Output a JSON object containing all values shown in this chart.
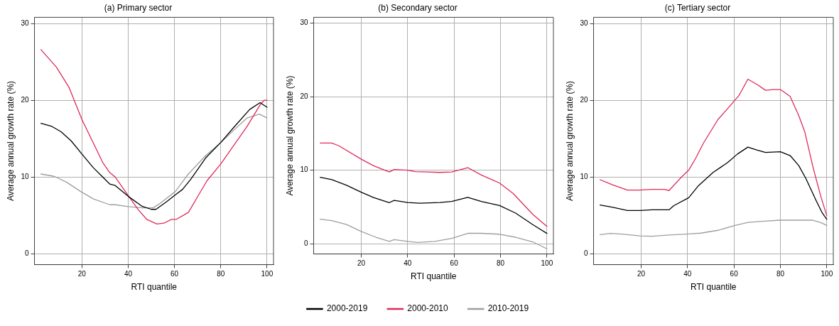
{
  "chart_data": [
    {
      "type": "line",
      "title": "(a) Primary sector",
      "xlabel": "RTI quantile",
      "ylabel": "Average annual growth rate (%)",
      "xlim": [
        -0.5,
        102.8
      ],
      "ylim": [
        -1.4,
        30.8
      ],
      "xticks": [
        20,
        40,
        60,
        80,
        100
      ],
      "yticks": [
        0,
        10,
        20,
        30
      ],
      "grid": true,
      "legend": false,
      "series": [
        {
          "color": "#000000",
          "x": [
            2.3,
            7,
            11,
            15.4,
            20,
            25,
            29,
            32,
            34.4,
            40,
            46,
            50,
            52,
            56.6,
            60,
            63.5,
            67,
            73.5,
            80,
            86,
            92.5,
            97,
            100
          ],
          "values": [
            17.0,
            16.6,
            15.9,
            14.7,
            13.0,
            11.2,
            10.0,
            9.1,
            8.9,
            7.5,
            6.2,
            5.8,
            5.8,
            6.8,
            7.6,
            8.4,
            9.7,
            12.5,
            14.5,
            16.6,
            18.8,
            19.7,
            19.1
          ]
        },
        {
          "color": "#df2a5a",
          "x": [
            2.3,
            9,
            14.4,
            20,
            25,
            29,
            32,
            34.4,
            40,
            44.5,
            48,
            52.4,
            55.5,
            58.7,
            60.8,
            66,
            70.3,
            74,
            80,
            85.6,
            91.4,
            97.2,
            98.8,
            100
          ],
          "values": [
            26.6,
            24.3,
            21.7,
            17.5,
            14.4,
            11.9,
            10.6,
            10.0,
            7.6,
            5.7,
            4.5,
            3.9,
            4.0,
            4.5,
            4.5,
            5.4,
            7.6,
            9.5,
            11.7,
            14.1,
            16.6,
            19.5,
            20.0,
            20.0
          ]
        },
        {
          "color": "#9e9e9e",
          "x": [
            2.3,
            8,
            13.3,
            19.6,
            25,
            32,
            34.4,
            40,
            46,
            50.8,
            53.4,
            60.3,
            66,
            73.5,
            80,
            85.6,
            91.4,
            96.7,
            100
          ],
          "values": [
            10.4,
            10.1,
            9.35,
            8.1,
            7.15,
            6.4,
            6.4,
            6.15,
            6.0,
            6.0,
            6.5,
            8.1,
            10.4,
            12.8,
            14.5,
            16.1,
            17.7,
            18.2,
            17.7
          ]
        }
      ]
    },
    {
      "type": "line",
      "title": "(b) Secondary sector",
      "xlabel": "RTI quantile",
      "ylabel": "Average annual growth rate (%)",
      "xlim": [
        -0.5,
        102.8
      ],
      "ylim": [
        -1.4,
        30.8
      ],
      "xticks": [
        20,
        40,
        60,
        80,
        100
      ],
      "yticks": [
        0,
        10,
        20,
        30
      ],
      "grid": true,
      "legend": "bottom",
      "series": [
        {
          "name": "2000-2019",
          "color": "#000000",
          "x": [
            2.3,
            7.3,
            13.7,
            20,
            25.3,
            32.1,
            34.2,
            40,
            45.3,
            53.8,
            59,
            65.9,
            71.7,
            79.6,
            86.5,
            93.9,
            100
          ],
          "values": [
            9.04,
            8.72,
            7.94,
            7.0,
            6.28,
            5.59,
            5.9,
            5.6,
            5.5,
            5.6,
            5.74,
            6.3,
            5.74,
            5.2,
            4.17,
            2.6,
            1.4
          ]
        },
        {
          "name": "2000-2010",
          "color": "#df2a5a",
          "x": [
            2.3,
            7.3,
            10.5,
            20,
            25.3,
            32.1,
            34.2,
            40,
            43.2,
            48.5,
            53.8,
            59,
            65.9,
            71.7,
            79.6,
            85.4,
            93.9,
            100
          ],
          "values": [
            13.7,
            13.7,
            13.3,
            11.5,
            10.6,
            9.76,
            10.1,
            10.0,
            9.8,
            9.76,
            9.7,
            9.76,
            10.35,
            9.35,
            8.25,
            6.85,
            4.0,
            2.35
          ]
        },
        {
          "name": "2010-2019",
          "color": "#9e9e9e",
          "x": [
            2.3,
            7.3,
            13.7,
            20,
            26.3,
            32.1,
            34.2,
            40,
            44.3,
            51.7,
            59,
            65.9,
            71.7,
            79.6,
            86.5,
            93.9,
            100
          ],
          "values": [
            3.33,
            3.14,
            2.6,
            1.66,
            0.88,
            0.31,
            0.56,
            0.31,
            0.16,
            0.31,
            0.72,
            1.41,
            1.41,
            1.29,
            0.88,
            0.25,
            -0.69
          ]
        }
      ]
    },
    {
      "type": "line",
      "title": "(c) Tertiary sector",
      "xlabel": "RTI quantile",
      "ylabel": "Average annual growth rate (%)",
      "xlim": [
        -0.5,
        102.8
      ],
      "ylim": [
        -1.4,
        30.8
      ],
      "xticks": [
        20,
        40,
        60,
        80,
        100
      ],
      "yticks": [
        0,
        10,
        20,
        30
      ],
      "grid": true,
      "legend": false,
      "series": [
        {
          "color": "#000000",
          "x": [
            2.3,
            7.8,
            14.1,
            19.4,
            24.7,
            32,
            34.1,
            40.5,
            44.7,
            51,
            57.3,
            61.5,
            66,
            70,
            73.6,
            80,
            84.2,
            87.9,
            91,
            95.3,
            97.9,
            100
          ],
          "values": [
            6.37,
            6.06,
            5.65,
            5.65,
            5.74,
            5.74,
            6.28,
            7.31,
            8.88,
            10.6,
            11.9,
            13.0,
            13.9,
            13.5,
            13.2,
            13.3,
            12.8,
            11.5,
            9.8,
            7.0,
            5.4,
            4.5
          ]
        },
        {
          "color": "#df2a5a",
          "x": [
            2.3,
            7.8,
            14.1,
            19.4,
            24.7,
            29.9,
            32,
            37.3,
            40.5,
            43.6,
            46.8,
            53.1,
            57.8,
            62.1,
            66,
            70,
            73.6,
            76.8,
            80,
            84.2,
            87.9,
            90.5,
            94.2,
            97.4,
            100
          ],
          "values": [
            9.66,
            8.97,
            8.3,
            8.3,
            8.4,
            8.4,
            8.25,
            9.98,
            10.9,
            12.5,
            14.4,
            17.5,
            19.1,
            20.6,
            22.75,
            22.05,
            21.3,
            21.4,
            21.4,
            20.5,
            18.0,
            15.9,
            11.1,
            7.5,
            4.96
          ]
        },
        {
          "color": "#9e9e9e",
          "x": [
            2.3,
            6.7,
            12,
            19.4,
            24.7,
            32,
            40.5,
            45.7,
            53.1,
            60.5,
            66,
            72,
            80,
            86.8,
            93.7,
            97.4,
            100
          ],
          "values": [
            2.51,
            2.67,
            2.57,
            2.35,
            2.29,
            2.45,
            2.6,
            2.7,
            3.07,
            3.7,
            4.1,
            4.24,
            4.39,
            4.39,
            4.39,
            4.08,
            3.7
          ]
        }
      ]
    }
  ]
}
